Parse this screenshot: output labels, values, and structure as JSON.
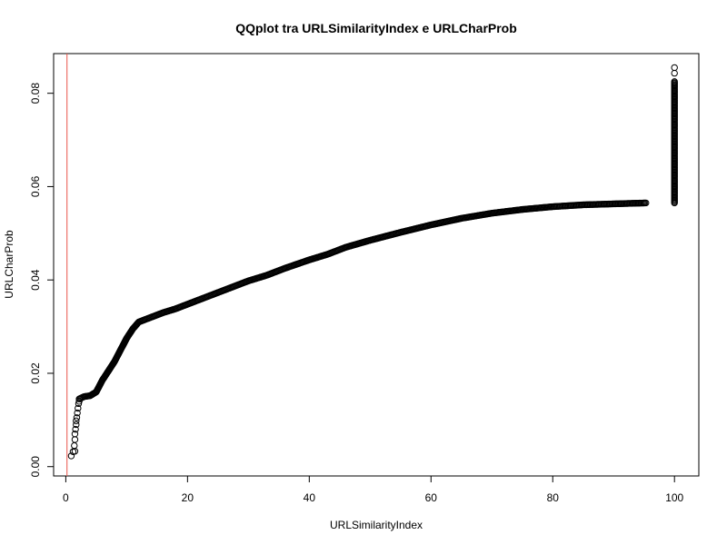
{
  "chart_data": {
    "type": "scatter",
    "title": "QQplot tra URLSimilarityIndex e URLCharProb",
    "xlabel": "URLSimilarityIndex",
    "ylabel": "URLCharProb",
    "xlim": [
      -2,
      104
    ],
    "ylim": [
      -0.002,
      0.0885
    ],
    "x_ticks": [
      0,
      20,
      40,
      60,
      80,
      100
    ],
    "y_ticks": [
      0.0,
      0.02,
      0.04,
      0.06,
      0.08
    ],
    "x_tick_labels": [
      "0",
      "20",
      "40",
      "60",
      "80",
      "100"
    ],
    "y_tick_labels": [
      "0.00",
      "0.02",
      "0.04",
      "0.06",
      "0.08"
    ],
    "grid": false,
    "point_style": "open-circle",
    "point_color": "#000000",
    "reference_line": {
      "orientation": "vertical",
      "x": 0.2,
      "color": "#e8534a"
    },
    "sparse_points": [
      {
        "x": 0.9,
        "y": 0.0023
      },
      {
        "x": 1.2,
        "y": 0.0032
      },
      {
        "x": 1.5,
        "y": 0.0033
      },
      {
        "x": 1.4,
        "y": 0.0045
      },
      {
        "x": 1.5,
        "y": 0.0058
      },
      {
        "x": 1.5,
        "y": 0.007
      },
      {
        "x": 1.6,
        "y": 0.008
      },
      {
        "x": 1.7,
        "y": 0.009
      },
      {
        "x": 1.7,
        "y": 0.0098
      },
      {
        "x": 1.8,
        "y": 0.0105
      },
      {
        "x": 1.9,
        "y": 0.0115
      },
      {
        "x": 2.0,
        "y": 0.0125
      },
      {
        "x": 2.1,
        "y": 0.0135
      },
      {
        "x": 2.2,
        "y": 0.014
      }
    ],
    "curve": [
      {
        "x": 2.2,
        "y": 0.0145
      },
      {
        "x": 3.0,
        "y": 0.015
      },
      {
        "x": 4.0,
        "y": 0.0152
      },
      {
        "x": 5.0,
        "y": 0.016
      },
      {
        "x": 6.0,
        "y": 0.0185
      },
      {
        "x": 7.0,
        "y": 0.0205
      },
      {
        "x": 8.0,
        "y": 0.0225
      },
      {
        "x": 9.0,
        "y": 0.025
      },
      {
        "x": 10.0,
        "y": 0.0275
      },
      {
        "x": 11.0,
        "y": 0.0295
      },
      {
        "x": 12.0,
        "y": 0.031
      },
      {
        "x": 14.0,
        "y": 0.032
      },
      {
        "x": 16.0,
        "y": 0.033
      },
      {
        "x": 18.0,
        "y": 0.0338
      },
      {
        "x": 20.0,
        "y": 0.0348
      },
      {
        "x": 22.0,
        "y": 0.0358
      },
      {
        "x": 25.0,
        "y": 0.0373
      },
      {
        "x": 28.0,
        "y": 0.0388
      },
      {
        "x": 30.0,
        "y": 0.0398
      },
      {
        "x": 33.0,
        "y": 0.041
      },
      {
        "x": 36.0,
        "y": 0.0425
      },
      {
        "x": 40.0,
        "y": 0.0443
      },
      {
        "x": 43.0,
        "y": 0.0455
      },
      {
        "x": 46.0,
        "y": 0.047
      },
      {
        "x": 50.0,
        "y": 0.0485
      },
      {
        "x": 55.0,
        "y": 0.0502
      },
      {
        "x": 60.0,
        "y": 0.0518
      },
      {
        "x": 65.0,
        "y": 0.0532
      },
      {
        "x": 70.0,
        "y": 0.0543
      },
      {
        "x": 75.0,
        "y": 0.0551
      },
      {
        "x": 80.0,
        "y": 0.0557
      },
      {
        "x": 85.0,
        "y": 0.0561
      },
      {
        "x": 90.0,
        "y": 0.0563
      },
      {
        "x": 95.3,
        "y": 0.0565
      }
    ],
    "vertical_cluster": {
      "x": 100,
      "ymin": 0.0565,
      "ymax": 0.0825,
      "outliers": [
        0.0843,
        0.0855
      ]
    }
  }
}
